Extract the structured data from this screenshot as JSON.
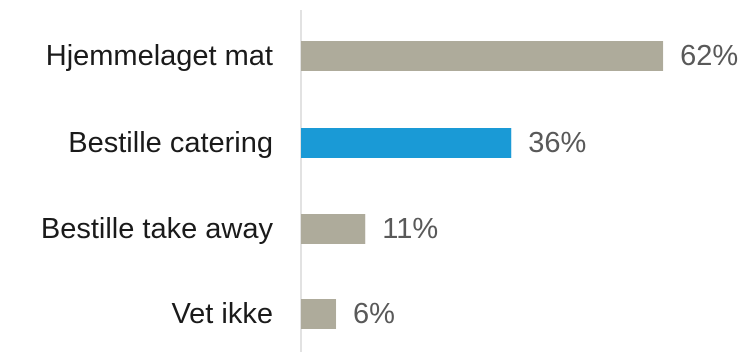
{
  "chart_data": {
    "type": "bar",
    "orientation": "horizontal",
    "categories": [
      "Hjemmelaget mat",
      "Bestille catering",
      "Bestille take away",
      "Vet ikke"
    ],
    "values": [
      62,
      36,
      11,
      6
    ],
    "value_labels": [
      "62%",
      "36%",
      "11%",
      "6%"
    ],
    "unit": "%",
    "xlim": [
      0,
      75
    ],
    "grid": false,
    "legend": "none",
    "highlight_index": 1,
    "colors": {
      "default_bar": "#aeab9b",
      "highlight_bar": "#1a9ad6",
      "axis": "#d9d9d9"
    }
  }
}
